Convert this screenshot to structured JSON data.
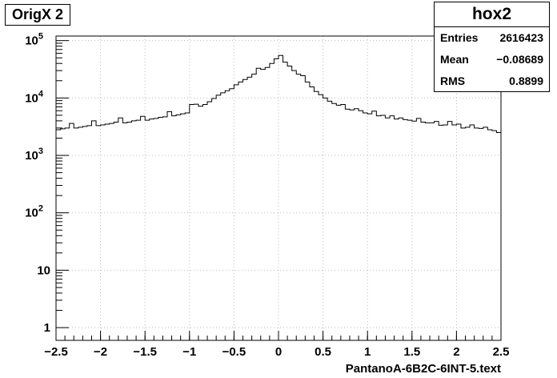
{
  "title_box": "OrigX 2",
  "stats": {
    "name": "hox2",
    "rows": [
      {
        "key": "Entries",
        "value": "2616423"
      },
      {
        "key": "Mean",
        "value": "−0.08689"
      },
      {
        "key": "RMS",
        "value": "0.8899"
      }
    ]
  },
  "chart_data": {
    "type": "histogram",
    "title": "OrigX 2",
    "xlabel": "PantanoA-6B2C-6INT-5.text",
    "ylabel": "",
    "xlim": [
      -2.5,
      2.5
    ],
    "ylim": [
      0.6,
      120000
    ],
    "yscale": "log",
    "grid": true,
    "xticks": [
      -2.5,
      -2,
      -1.5,
      -1,
      -0.5,
      0,
      0.5,
      1,
      1.5,
      2,
      2.5
    ],
    "xtick_labels": [
      "−2.5",
      "−2",
      "−1.5",
      "−1",
      "−0.5",
      "0",
      "0.5",
      "1",
      "1.5",
      "2",
      "2.5"
    ],
    "yticks": [
      1,
      10,
      100,
      1000,
      10000,
      100000
    ],
    "ytick_labels": [
      {
        "base": "1",
        "exp": ""
      },
      {
        "base": "10",
        "exp": ""
      },
      {
        "base": "10",
        "exp": "2"
      },
      {
        "base": "10",
        "exp": "3"
      },
      {
        "base": "10",
        "exp": "4"
      },
      {
        "base": "10",
        "exp": "5"
      }
    ],
    "bin_width": 0.05,
    "bin_low_edges": [
      -2.5,
      -2.45,
      -2.4,
      -2.35,
      -2.3,
      -2.25,
      -2.2,
      -2.15,
      -2.1,
      -2.05,
      -2.0,
      -1.95,
      -1.9,
      -1.85,
      -1.8,
      -1.75,
      -1.7,
      -1.65,
      -1.6,
      -1.55,
      -1.5,
      -1.45,
      -1.4,
      -1.35,
      -1.3,
      -1.25,
      -1.2,
      -1.15,
      -1.1,
      -1.05,
      -1.0,
      -0.95,
      -0.9,
      -0.85,
      -0.8,
      -0.75,
      -0.7,
      -0.65,
      -0.6,
      -0.55,
      -0.5,
      -0.45,
      -0.4,
      -0.35,
      -0.3,
      -0.25,
      -0.2,
      -0.15,
      -0.1,
      -0.05,
      0.0,
      0.05,
      0.1,
      0.15,
      0.2,
      0.25,
      0.3,
      0.35,
      0.4,
      0.45,
      0.5,
      0.55,
      0.6,
      0.65,
      0.7,
      0.75,
      0.8,
      0.85,
      0.9,
      0.95,
      1.0,
      1.05,
      1.1,
      1.15,
      1.2,
      1.25,
      1.3,
      1.35,
      1.4,
      1.45,
      1.5,
      1.55,
      1.6,
      1.65,
      1.7,
      1.75,
      1.8,
      1.85,
      1.9,
      1.95,
      2.0,
      2.05,
      2.1,
      2.15,
      2.2,
      2.25,
      2.3,
      2.35,
      2.4,
      2.45
    ],
    "values": [
      2800,
      2900,
      3000,
      3600,
      3000,
      3100,
      3200,
      3300,
      4000,
      3300,
      3400,
      3500,
      3600,
      3800,
      4500,
      3700,
      3800,
      4000,
      4100,
      4800,
      4100,
      4300,
      4400,
      4600,
      4700,
      5800,
      4900,
      5100,
      5300,
      5500,
      7700,
      7800,
      7200,
      7700,
      8600,
      9800,
      11200,
      12300,
      13400,
      14500,
      17000,
      19000,
      21000,
      23000,
      26000,
      33000,
      31500,
      34000,
      40000,
      48000,
      55000,
      42000,
      36000,
      30000,
      26000,
      24500,
      19000,
      15600,
      13000,
      11400,
      10000,
      8800,
      8000,
      7500,
      7700,
      6400,
      6200,
      6500,
      6000,
      5500,
      5300,
      5900,
      4900,
      5000,
      4500,
      4900,
      4300,
      4500,
      4200,
      4100,
      3950,
      4400,
      3800,
      3700,
      3700,
      3900,
      3350,
      3400,
      3900,
      3400,
      3500,
      3000,
      3100,
      3400,
      3000,
      2950,
      3100,
      2800,
      2700,
      2500
    ]
  }
}
